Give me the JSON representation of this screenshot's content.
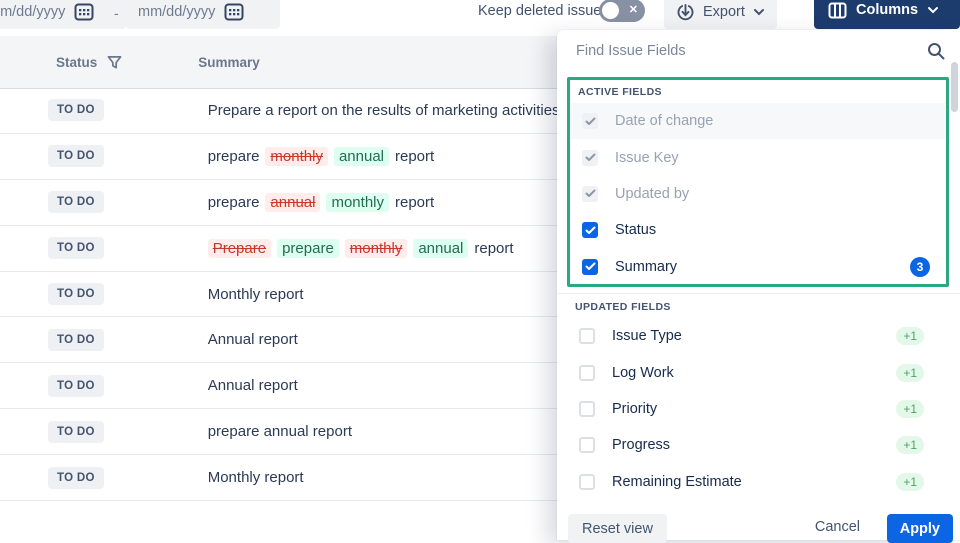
{
  "toolbar": {
    "date_from_placeholder": "mm/dd/yyyy",
    "date_to_placeholder": "mm/dd/yyyy",
    "range_separator": "-",
    "keep_deleted_label": "Keep deleted issues",
    "export_label": "Export",
    "columns_label": "Columns"
  },
  "table": {
    "columns": {
      "status": "Status",
      "summary": "Summary"
    },
    "rows": [
      {
        "status": "TO DO",
        "summary": [
          {
            "text": "Prepare a report on the results of marketing activities",
            "type": "plain"
          }
        ]
      },
      {
        "status": "TO DO",
        "summary": [
          {
            "text": "prepare",
            "type": "plain"
          },
          {
            "text": "monthly",
            "type": "removed"
          },
          {
            "text": "annual",
            "type": "added"
          },
          {
            "text": "report",
            "type": "plain"
          }
        ]
      },
      {
        "status": "TO DO",
        "summary": [
          {
            "text": "prepare",
            "type": "plain"
          },
          {
            "text": "annual",
            "type": "removed"
          },
          {
            "text": "monthly",
            "type": "added"
          },
          {
            "text": "report",
            "type": "plain"
          }
        ]
      },
      {
        "status": "TO DO",
        "summary": [
          {
            "text": "Prepare",
            "type": "removed"
          },
          {
            "text": "prepare",
            "type": "added"
          },
          {
            "text": "monthly",
            "type": "removed"
          },
          {
            "text": "annual",
            "type": "added"
          },
          {
            "text": "report",
            "type": "plain"
          }
        ]
      },
      {
        "status": "TO DO",
        "summary": [
          {
            "text": "Monthly report",
            "type": "plain"
          }
        ]
      },
      {
        "status": "TO DO",
        "summary": [
          {
            "text": "Annual report",
            "type": "plain"
          }
        ]
      },
      {
        "status": "TO DO",
        "summary": [
          {
            "text": "Annual report",
            "type": "plain"
          }
        ]
      },
      {
        "status": "TO DO",
        "summary": [
          {
            "text": "prepare annual report",
            "type": "plain"
          }
        ]
      },
      {
        "status": "TO DO",
        "summary": [
          {
            "text": "Monthly report",
            "type": "plain"
          }
        ]
      }
    ]
  },
  "panel": {
    "search_placeholder": "Find Issue Fields",
    "active_section": {
      "label": "ACTIVE FIELDS",
      "items": [
        {
          "label": "Date of change",
          "state": "locked",
          "highlighted": true
        },
        {
          "label": "Issue Key",
          "state": "locked"
        },
        {
          "label": "Updated by",
          "state": "locked"
        },
        {
          "label": "Status",
          "state": "checked"
        },
        {
          "label": "Summary",
          "state": "checked",
          "badge": "3"
        }
      ]
    },
    "updated_section": {
      "label": "UPDATED FIELDS",
      "items": [
        {
          "label": "Issue Type",
          "state": "unchecked",
          "badge": "+1"
        },
        {
          "label": "Log Work",
          "state": "unchecked",
          "badge": "+1"
        },
        {
          "label": "Priority",
          "state": "unchecked",
          "badge": "+1"
        },
        {
          "label": "Progress",
          "state": "unchecked",
          "badge": "+1"
        },
        {
          "label": "Remaining Estimate",
          "state": "unchecked",
          "badge": "+1"
        }
      ]
    },
    "footer": {
      "reset_label": "Reset view",
      "cancel_label": "Cancel",
      "apply_label": "Apply"
    }
  },
  "colors": {
    "accent_blue": "#0C66E4",
    "navy_button": "#1D3C6E",
    "highlight_green_border": "#2BA882",
    "removed_text": "#C9372C",
    "removed_bg": "#FFECEB",
    "added_text": "#216E4E",
    "added_bg": "#DCFFF1",
    "plus_badge_bg": "#E4F8E9",
    "plus_badge_text": "#4CA368"
  }
}
